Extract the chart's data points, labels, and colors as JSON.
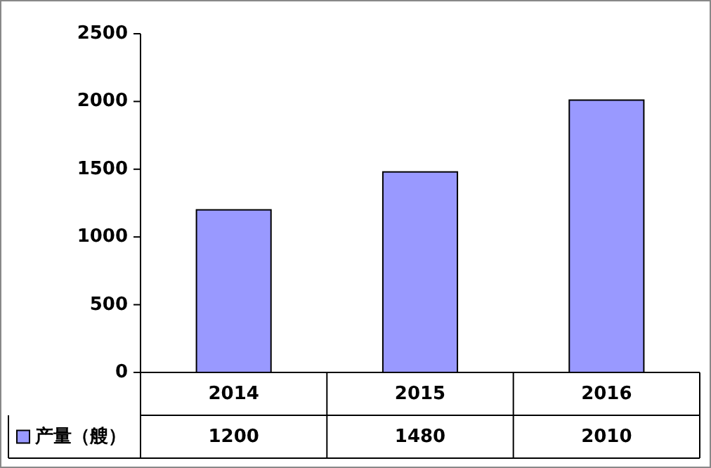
{
  "chart_data": {
    "type": "bar",
    "categories": [
      "2014",
      "2015",
      "2016"
    ],
    "series": [
      {
        "name": "产量（艘）",
        "color": "#9999ff",
        "values": [
          1200,
          1480,
          2010
        ]
      }
    ],
    "ylim": [
      0,
      2500
    ],
    "yticks": [
      0,
      500,
      1000,
      1500,
      2000,
      2500
    ],
    "data_labels": true,
    "legend": "bottom",
    "grid": false
  }
}
